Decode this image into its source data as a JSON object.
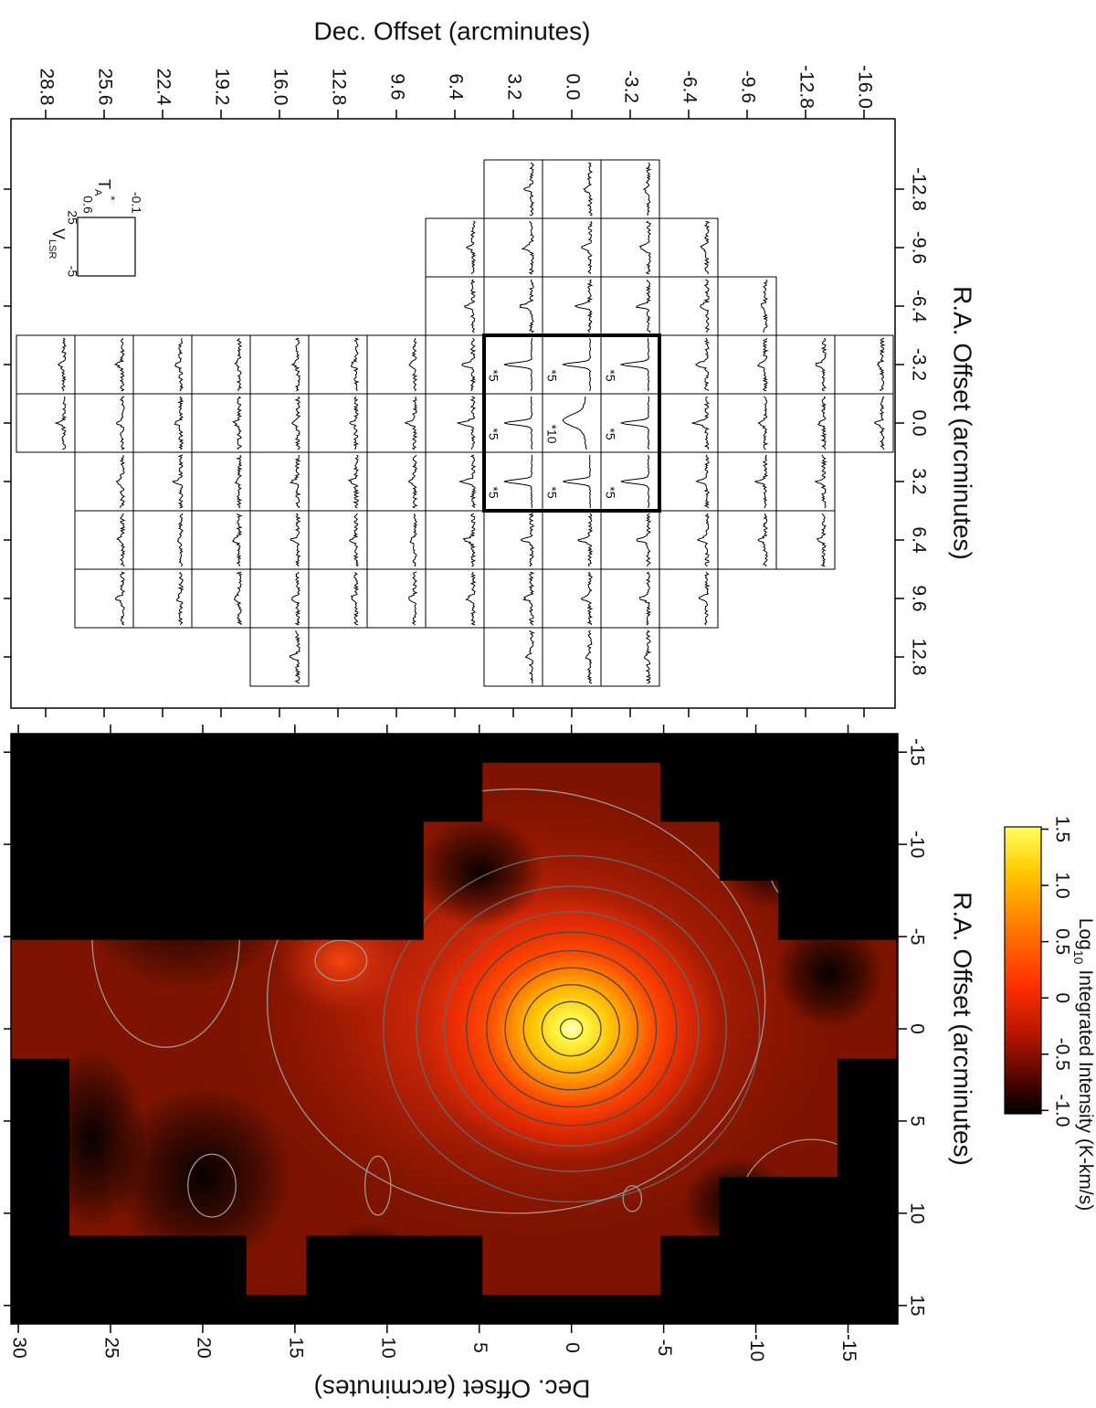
{
  "chart_data": [
    {
      "type": "spectra-grid",
      "title": "Dec. Offset (arcminutes)",
      "x_label": "R.A. Offset (arcminutes)",
      "xlim": [
        30.7,
        -17.7
      ],
      "ylim": [
        -16.65,
        15.6
      ],
      "xticks": [
        28.8,
        25.6,
        22.4,
        19.2,
        {
          "value": 16,
          "label": "16.0"
        },
        12.8,
        9.6,
        6.4,
        3.2,
        {
          "value": 0,
          "label": "0.0"
        },
        -3.2,
        -6.4,
        -9.6,
        -12.8,
        {
          "value": -16,
          "label": "-16.0"
        }
      ],
      "yticks": [
        12.8,
        9.6,
        6.4,
        3.2,
        {
          "value": 0,
          "label": "0.0"
        },
        -3.2,
        -6.4,
        -9.6,
        -12.8
      ],
      "rows": [
        {
          "ra": -12.8,
          "dec": [
            3.2,
            0,
            -3.2
          ]
        },
        {
          "ra": -9.6,
          "dec": [
            6.4,
            3.2,
            0,
            -3.2,
            -6.4
          ]
        },
        {
          "ra": -6.4,
          "dec": [
            6.4,
            3.2,
            0,
            -3.2,
            -6.4,
            -9.6
          ]
        },
        {
          "ra": -3.2,
          "dec": [
            28.8,
            25.6,
            22.4,
            19.2,
            16,
            12.8,
            9.6,
            6.4,
            3.2,
            0,
            -3.2,
            -6.4,
            -9.6,
            -12.8,
            -16
          ]
        },
        {
          "ra": 0,
          "dec": [
            28.8,
            25.6,
            22.4,
            19.2,
            16,
            12.8,
            9.6,
            6.4,
            3.2,
            0,
            -3.2,
            -6.4,
            -9.6,
            -12.8,
            -16
          ]
        },
        {
          "ra": 3.2,
          "dec": [
            25.6,
            22.4,
            19.2,
            16,
            12.8,
            9.6,
            6.4,
            3.2,
            0,
            -3.2,
            -6.4,
            -9.6,
            -12.8
          ]
        },
        {
          "ra": 6.4,
          "dec": [
            25.6,
            22.4,
            19.2,
            16,
            12.8,
            9.6,
            6.4,
            3.2,
            0,
            -3.2,
            -6.4,
            -9.6,
            -12.8
          ]
        },
        {
          "ra": 9.6,
          "dec": [
            25.6,
            22.4,
            19.2,
            16,
            12.8,
            9.6,
            6.4,
            3.2,
            0,
            -3.2,
            -6.4
          ]
        },
        {
          "ra": 12.8,
          "dec": [
            16,
            3.2,
            0,
            -3.2
          ]
        }
      ],
      "scaled": [
        {
          "ra": -3.2,
          "dec": 3.2,
          "label": "*5"
        },
        {
          "ra": -3.2,
          "dec": 0,
          "label": "*5"
        },
        {
          "ra": -3.2,
          "dec": -3.2,
          "label": "*5"
        },
        {
          "ra": 0,
          "dec": 3.2,
          "label": "*5"
        },
        {
          "ra": 0,
          "dec": 0,
          "label": "*10"
        },
        {
          "ra": 0,
          "dec": -3.2,
          "label": "*5"
        },
        {
          "ra": 3.2,
          "dec": 3.2,
          "label": "*5"
        },
        {
          "ra": 3.2,
          "dec": 0,
          "label": "*5"
        },
        {
          "ra": 3.2,
          "dec": -3.2,
          "label": "*5"
        }
      ],
      "key": {
        "velocity_label": "V",
        "velocity_sub": "LSR",
        "velocity_range": [
          -5,
          25
        ],
        "ta_label": "T",
        "ta_sub": "A",
        "ta_sup": "*",
        "ta_range": [
          -0.1,
          0.6
        ]
      }
    },
    {
      "type": "heatmap",
      "x_label": "Dec. Offset (arcminutes)",
      "y_label": "R.A. Offset (arcminutes)",
      "xlim": [
        30.4,
        -17.7
      ],
      "ylim": [
        -16,
        16
      ],
      "xticks": [
        30,
        25,
        20,
        15,
        10,
        5,
        0,
        -5,
        -10,
        -15
      ],
      "yticks": [
        15,
        10,
        5,
        0,
        -5,
        -10,
        -15
      ],
      "colorbar": {
        "label": "Log",
        "label_sub": "10",
        "label_rest": "Integrated Intensity (K-km/s)",
        "clim": [
          -1.03,
          1.52
        ],
        "ticks": [
          {
            "value": -1,
            "label": "-1.0"
          },
          -0.5,
          0,
          0.5,
          {
            "value": 1,
            "label": "1.0"
          },
          1.5
        ]
      }
    }
  ]
}
